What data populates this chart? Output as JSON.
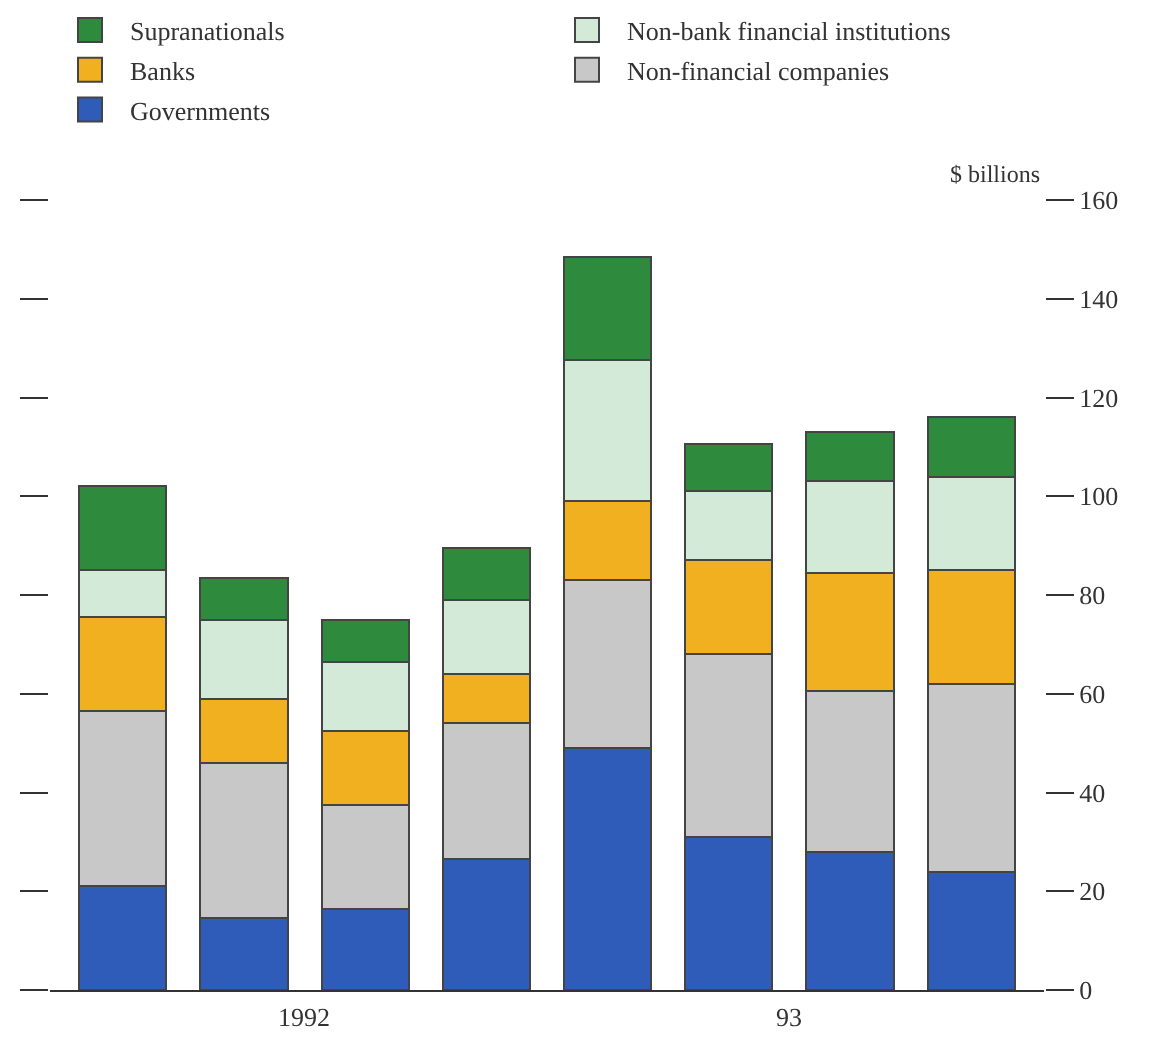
{
  "chart_data": {
    "type": "bar",
    "stacked": true,
    "ylabel": "$ billions",
    "categories": [
      null,
      null,
      null,
      null,
      null,
      null,
      null,
      null
    ],
    "annotations": [
      "1992",
      "93"
    ],
    "series": [
      {
        "name": "Governments",
        "color": "#2f5cb8",
        "values": [
          21,
          14.5,
          16.5,
          26.5,
          49,
          31,
          28,
          24
        ]
      },
      {
        "name": "Non-financial companies",
        "color": "#c8c8c8",
        "values": [
          35.5,
          31.5,
          21,
          27.5,
          34,
          37,
          32.5,
          38
        ]
      },
      {
        "name": "Banks",
        "color": "#f0b020",
        "values": [
          19,
          13,
          15,
          10,
          16,
          19,
          24,
          23
        ]
      },
      {
        "name": "Non-bank financial institutions",
        "color": "#d4ead8",
        "values": [
          9.5,
          16,
          14,
          15,
          28.5,
          14,
          18.5,
          19
        ]
      },
      {
        "name": "Supranationals",
        "color": "#2e8b3e",
        "values": [
          17,
          8.5,
          8.5,
          10.5,
          21,
          9.5,
          10,
          12
        ]
      }
    ],
    "ylim": [
      0,
      160
    ],
    "yticks": [
      0,
      20,
      40,
      60,
      80,
      100,
      120,
      140,
      160
    ],
    "legend": "top"
  }
}
